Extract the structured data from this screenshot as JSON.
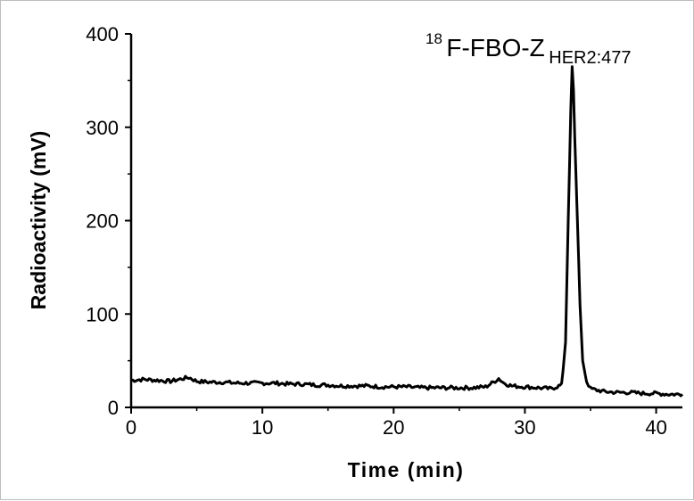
{
  "chart_data": {
    "type": "line",
    "xlabel": "Time (min)",
    "ylabel": "Radioactivity (mV)",
    "xlim": [
      0,
      42
    ],
    "ylim": [
      0,
      400
    ],
    "x_ticks": [
      0,
      10,
      20,
      30,
      40
    ],
    "y_ticks": [
      0,
      100,
      200,
      300,
      400
    ],
    "grid": false,
    "annotation": {
      "superscript": "18",
      "main": "F-FBO-Z",
      "subscript": "HER2:477"
    },
    "series": [
      {
        "color": "#000000",
        "x": [
          0,
          1,
          2,
          3,
          4,
          4.4,
          5,
          6,
          7,
          8,
          9,
          10,
          11,
          12,
          13,
          14,
          15,
          16,
          17,
          18,
          19,
          20,
          21,
          22,
          23,
          24,
          25,
          26,
          27,
          27.6,
          28,
          28.4,
          29,
          30,
          31,
          32,
          32.8,
          33.1,
          33.3,
          33.5,
          33.6,
          33.7,
          33.8,
          34.0,
          34.2,
          34.4,
          34.7,
          35,
          36,
          37,
          38,
          39,
          40,
          41,
          42
        ],
        "y": [
          29,
          30,
          29,
          28,
          31,
          32,
          28,
          27,
          27,
          26,
          26,
          26,
          26,
          25,
          25,
          24,
          24,
          23,
          23,
          23,
          22,
          22,
          22,
          21,
          21,
          21,
          21,
          21,
          22,
          27,
          31,
          26,
          23,
          22,
          21,
          20,
          24,
          70,
          200,
          320,
          365,
          340,
          290,
          200,
          110,
          50,
          28,
          20,
          17,
          16,
          16,
          15,
          15,
          14,
          14
        ]
      }
    ]
  }
}
